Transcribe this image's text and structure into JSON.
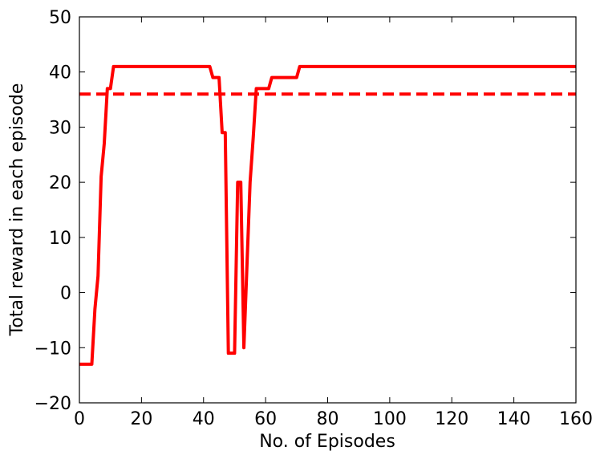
{
  "chart_data": {
    "type": "line",
    "title": "",
    "xlabel": "No. of Episodes",
    "ylabel": "Total reward in each episode",
    "xlim": [
      0,
      160
    ],
    "ylim": [
      -20,
      50
    ],
    "xticks": [
      0,
      20,
      40,
      60,
      80,
      100,
      120,
      140,
      160
    ],
    "yticks": [
      -20,
      -10,
      0,
      10,
      20,
      30,
      40,
      50
    ],
    "xtick_labels": [
      "0",
      "20",
      "40",
      "60",
      "80",
      "100",
      "120",
      "140",
      "160"
    ],
    "ytick_labels": [
      "−20",
      "−10",
      "0",
      "10",
      "20",
      "30",
      "40",
      "50"
    ],
    "grid": false,
    "legend": "none",
    "series": [
      {
        "style": "solid",
        "color": "#ff0000",
        "x": [
          0,
          1,
          2,
          3,
          4,
          5,
          6,
          7,
          8,
          9,
          10,
          11,
          12,
          20,
          30,
          40,
          42,
          43,
          44,
          45,
          46,
          47,
          48,
          49,
          50,
          51,
          52,
          53,
          54,
          55,
          56,
          57,
          58,
          59,
          60,
          61,
          62,
          63,
          64,
          65,
          66,
          67,
          68,
          69,
          70,
          71,
          72,
          80,
          100,
          120,
          140,
          160
        ],
        "y": [
          -13,
          -13,
          -13,
          -13,
          -13,
          -3,
          3,
          21,
          27,
          37,
          37,
          41,
          41,
          41,
          41,
          41,
          41,
          39,
          39,
          39,
          29,
          29,
          -11,
          -11,
          -11,
          20,
          20,
          -10,
          5,
          20,
          28,
          37,
          37,
          37,
          37,
          37,
          39,
          39,
          39,
          39,
          39,
          39,
          39,
          39,
          39,
          41,
          41,
          41,
          41,
          41,
          41,
          41
        ]
      },
      {
        "style": "dashed",
        "color": "#ff0000",
        "x": [
          0,
          160
        ],
        "y": [
          36,
          36
        ]
      }
    ]
  }
}
